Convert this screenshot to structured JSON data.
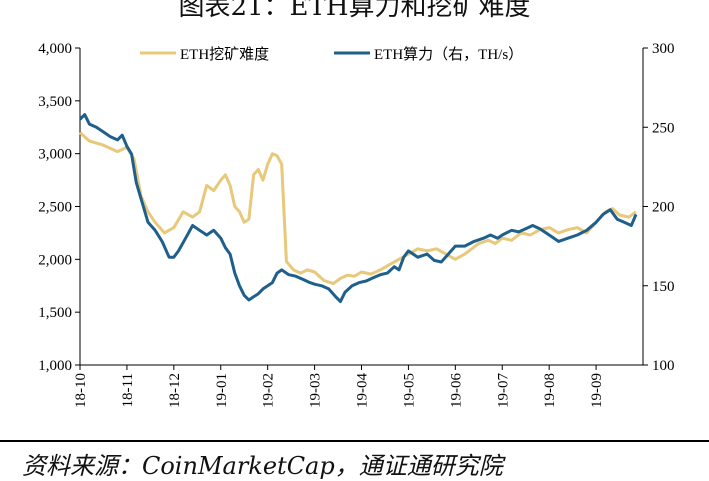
{
  "title": "图表21：ETH算力和挖矿难度",
  "source": "资料来源：CoinMarketCap，通证通研究院",
  "colors": {
    "difficulty": "#e8c87a",
    "hashrate": "#1f5f8b",
    "axis": "#000000"
  },
  "chart_data": {
    "type": "line",
    "title": "图表21：ETH算力和挖矿难度",
    "x": [
      "18-10",
      "18-11",
      "18-12",
      "19-01",
      "19-02",
      "19-03",
      "19-04",
      "19-05",
      "19-06",
      "19-07",
      "19-08",
      "19-09"
    ],
    "left_axis": {
      "ylim": [
        1000,
        4000
      ],
      "ticks": [
        "1,000",
        "1,500",
        "2,000",
        "2,500",
        "3,000",
        "3,500",
        "4,000"
      ]
    },
    "right_axis": {
      "ylim": [
        100,
        300
      ],
      "ticks": [
        "100",
        "150",
        "200",
        "250",
        "300"
      ]
    },
    "legend": {
      "placement": "top"
    },
    "grid": false,
    "series": [
      {
        "name": "ETH挖矿难度",
        "axis": "left",
        "points": [
          [
            0,
            3200
          ],
          [
            0.2,
            3120
          ],
          [
            0.5,
            3080
          ],
          [
            0.8,
            3020
          ],
          [
            1,
            3060
          ],
          [
            1.15,
            2950
          ],
          [
            1.3,
            2600
          ],
          [
            1.45,
            2450
          ],
          [
            1.6,
            2350
          ],
          [
            1.8,
            2250
          ],
          [
            2,
            2300
          ],
          [
            2.2,
            2450
          ],
          [
            2.4,
            2400
          ],
          [
            2.55,
            2450
          ],
          [
            2.7,
            2700
          ],
          [
            2.85,
            2650
          ],
          [
            3,
            2750
          ],
          [
            3.1,
            2800
          ],
          [
            3.2,
            2700
          ],
          [
            3.3,
            2500
          ],
          [
            3.4,
            2450
          ],
          [
            3.5,
            2350
          ],
          [
            3.6,
            2380
          ],
          [
            3.7,
            2800
          ],
          [
            3.8,
            2850
          ],
          [
            3.9,
            2750
          ],
          [
            4,
            2900
          ],
          [
            4.1,
            3000
          ],
          [
            4.2,
            2980
          ],
          [
            4.3,
            2900
          ],
          [
            4.4,
            1980
          ],
          [
            4.55,
            1900
          ],
          [
            4.7,
            1870
          ],
          [
            4.85,
            1900
          ],
          [
            5,
            1880
          ],
          [
            5.2,
            1800
          ],
          [
            5.4,
            1770
          ],
          [
            5.55,
            1820
          ],
          [
            5.7,
            1850
          ],
          [
            5.85,
            1840
          ],
          [
            6,
            1880
          ],
          [
            6.2,
            1860
          ],
          [
            6.4,
            1900
          ],
          [
            6.6,
            1950
          ],
          [
            6.8,
            2000
          ],
          [
            7,
            2050
          ],
          [
            7.2,
            2100
          ],
          [
            7.4,
            2080
          ],
          [
            7.6,
            2100
          ],
          [
            7.8,
            2050
          ],
          [
            8,
            2000
          ],
          [
            8.2,
            2050
          ],
          [
            8.35,
            2100
          ],
          [
            8.5,
            2150
          ],
          [
            8.7,
            2180
          ],
          [
            8.85,
            2150
          ],
          [
            9,
            2200
          ],
          [
            9.2,
            2180
          ],
          [
            9.4,
            2250
          ],
          [
            9.6,
            2230
          ],
          [
            9.8,
            2280
          ],
          [
            10,
            2300
          ],
          [
            10.2,
            2250
          ],
          [
            10.4,
            2280
          ],
          [
            10.6,
            2300
          ],
          [
            10.8,
            2250
          ],
          [
            11,
            2350
          ],
          [
            11.2,
            2450
          ],
          [
            11.35,
            2480
          ],
          [
            11.5,
            2420
          ],
          [
            11.7,
            2400
          ],
          [
            11.85,
            2450
          ]
        ]
      },
      {
        "name": "ETH算力（右，TH/s）",
        "axis": "right",
        "points": [
          [
            0,
            255
          ],
          [
            0.1,
            258
          ],
          [
            0.2,
            252
          ],
          [
            0.35,
            250
          ],
          [
            0.5,
            247
          ],
          [
            0.65,
            244
          ],
          [
            0.8,
            242
          ],
          [
            0.9,
            245
          ],
          [
            1,
            238
          ],
          [
            1.1,
            233
          ],
          [
            1.2,
            215
          ],
          [
            1.3,
            205
          ],
          [
            1.45,
            190
          ],
          [
            1.6,
            185
          ],
          [
            1.75,
            178
          ],
          [
            1.9,
            168
          ],
          [
            2,
            168
          ],
          [
            2.1,
            172
          ],
          [
            2.25,
            180
          ],
          [
            2.4,
            188
          ],
          [
            2.55,
            185
          ],
          [
            2.7,
            182
          ],
          [
            2.85,
            185
          ],
          [
            3,
            180
          ],
          [
            3.1,
            174
          ],
          [
            3.2,
            170
          ],
          [
            3.3,
            158
          ],
          [
            3.4,
            150
          ],
          [
            3.5,
            144
          ],
          [
            3.6,
            141
          ],
          [
            3.7,
            143
          ],
          [
            3.8,
            145
          ],
          [
            3.9,
            148
          ],
          [
            4,
            150
          ],
          [
            4.1,
            152
          ],
          [
            4.2,
            158
          ],
          [
            4.3,
            160
          ],
          [
            4.45,
            157
          ],
          [
            4.6,
            156
          ],
          [
            4.75,
            154
          ],
          [
            4.9,
            152
          ],
          [
            5,
            151
          ],
          [
            5.15,
            150
          ],
          [
            5.3,
            148
          ],
          [
            5.45,
            143
          ],
          [
            5.55,
            140
          ],
          [
            5.65,
            146
          ],
          [
            5.8,
            150
          ],
          [
            5.95,
            152
          ],
          [
            6.1,
            153
          ],
          [
            6.25,
            155
          ],
          [
            6.4,
            157
          ],
          [
            6.55,
            158
          ],
          [
            6.7,
            162
          ],
          [
            6.8,
            160
          ],
          [
            6.9,
            168
          ],
          [
            7,
            172
          ],
          [
            7.2,
            168
          ],
          [
            7.4,
            170
          ],
          [
            7.55,
            166
          ],
          [
            7.7,
            165
          ],
          [
            7.85,
            170
          ],
          [
            8,
            175
          ],
          [
            8.2,
            175
          ],
          [
            8.4,
            178
          ],
          [
            8.6,
            180
          ],
          [
            8.75,
            182
          ],
          [
            8.9,
            180
          ],
          [
            9,
            182
          ],
          [
            9.2,
            185
          ],
          [
            9.35,
            184
          ],
          [
            9.5,
            186
          ],
          [
            9.65,
            188
          ],
          [
            9.8,
            186
          ],
          [
            10,
            182
          ],
          [
            10.2,
            178
          ],
          [
            10.4,
            180
          ],
          [
            10.6,
            182
          ],
          [
            10.8,
            185
          ],
          [
            11,
            190
          ],
          [
            11.15,
            195
          ],
          [
            11.3,
            198
          ],
          [
            11.45,
            192
          ],
          [
            11.6,
            190
          ],
          [
            11.75,
            188
          ],
          [
            11.85,
            195
          ]
        ]
      }
    ]
  }
}
